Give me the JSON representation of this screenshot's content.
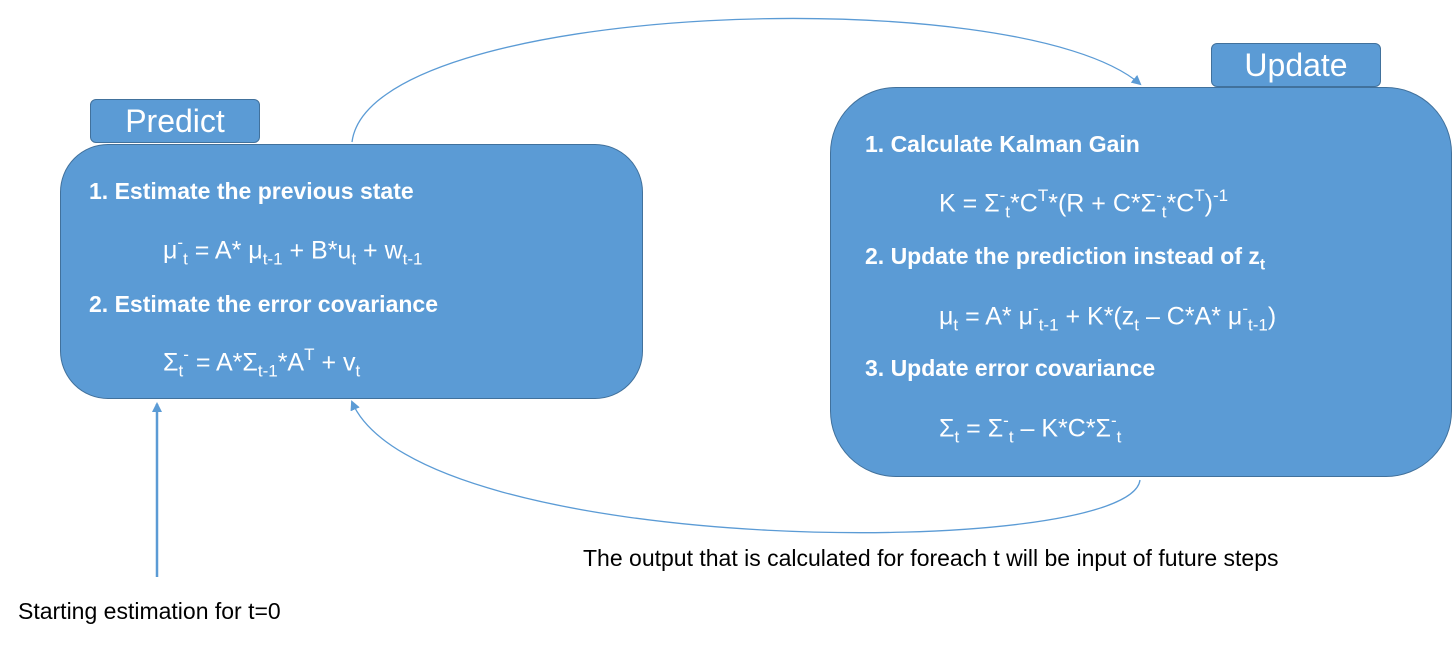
{
  "predict": {
    "tab_label": "Predict",
    "step1": "1. Estimate the previous state",
    "eq1": {
      "mu": "μ",
      "minus": "-",
      "t": "t",
      "eq_a": " = A* μ",
      "t_1": "t-1",
      "plus_b": " + B*u",
      "u_t": "t",
      "plus_w": " + w",
      "w_t": "t-1"
    },
    "step2": "2. Estimate the error covariance",
    "eq2": {
      "sigma": "Σ",
      "t": "t",
      "minus": "-",
      "eq_a": " = A*Σ",
      "t_1": "t-1",
      "a_t": "*A",
      "T": "T",
      "plus_v": " + v",
      "v_t": "t"
    }
  },
  "update": {
    "tab_label": "Update",
    "step1": "1. Calculate Kalman Gain",
    "eq1": {
      "k": "K = Σ",
      "minus1": "-",
      "t1": "t",
      "c1": "*C",
      "T1": "T",
      "r": "*(R + C*Σ",
      "minus2": "-",
      "t2": "t",
      "c2": "*C",
      "T2": "T",
      "close": ")",
      "inv": "-1"
    },
    "step2_text": "2. Update the prediction instead of z",
    "step2_sub": "t",
    "eq2": {
      "mu": "μ",
      "t1": "t",
      "eq": " = A* μ",
      "minus1": "-",
      "t_1a": "t-1",
      "k": " + K*(z",
      "t2": "t",
      "ca": " – C*A* μ",
      "minus2": "-",
      "t_1b": "t-1",
      "close": ")"
    },
    "step3": "3. Update error covariance",
    "eq3": {
      "sigma": "Σ",
      "t1": "t",
      "eq": " = Σ",
      "minus1": "-",
      "t2": "t",
      "kc": " – K*C*Σ",
      "minus2": "-",
      "t3": "t"
    }
  },
  "captions": {
    "loop": "The output that is calculated for foreach t will be input of future steps",
    "start": "Starting estimation for t=0"
  },
  "colors": {
    "box_fill": "#5b9bd5",
    "box_border": "#41719c",
    "arrow": "#5b9bd5"
  }
}
